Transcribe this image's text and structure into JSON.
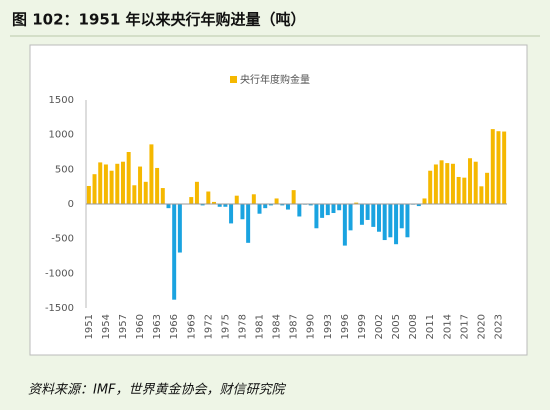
{
  "chart_data": {
    "type": "bar",
    "title": "图 102：1951 年以来央行年购进量（吨）",
    "source": "资料来源：IMF，世界黄金协会，财信研究院",
    "categories": [
      "1951",
      null,
      null,
      "1954",
      null,
      null,
      "1957",
      null,
      null,
      "1960",
      null,
      null,
      "1963",
      null,
      null,
      "1966",
      null,
      null,
      "1969",
      null,
      null,
      "1972",
      null,
      null,
      "1975",
      null,
      null,
      "1978",
      null,
      null,
      "1981",
      null,
      null,
      "1984",
      null,
      null,
      "1987",
      null,
      null,
      "1990",
      null,
      null,
      "1993",
      null,
      null,
      "1996",
      null,
      null,
      "1999",
      null,
      null,
      "2002",
      null,
      null,
      "2005",
      null,
      null,
      "2008",
      null,
      null,
      "2011",
      null,
      null,
      "2014",
      null,
      null,
      "2017",
      null,
      null,
      "2020",
      null,
      null,
      "2023",
      null
    ],
    "series": [
      {
        "name": "央行年度购金量",
        "color": "#f5b800",
        "values": [
          260,
          430,
          600,
          570,
          480,
          580,
          610,
          750,
          270,
          540,
          320,
          860,
          520,
          230,
          -60,
          -1380,
          -700,
          0,
          100,
          320,
          -20,
          180,
          30,
          -40,
          -40,
          -280,
          120,
          -220,
          -560,
          140,
          -140,
          -60,
          -20,
          80,
          -20,
          -80,
          200,
          -180,
          -10,
          -20,
          -350,
          -200,
          -160,
          -130,
          -90,
          -600,
          -380,
          20,
          -300,
          -230,
          -330,
          -400,
          -520,
          -480,
          -580,
          -350,
          -480,
          -10,
          -30,
          80,
          480,
          570,
          630,
          590,
          580,
          390,
          380,
          660,
          610,
          255,
          450,
          1080,
          1050,
          1045
        ]
      }
    ],
    "negative_color": "#1aa3e0",
    "ylim": [
      -1500,
      1500
    ],
    "yticks": [
      1500,
      1000,
      500,
      0,
      -500,
      -1000,
      -1500
    ],
    "legend": "top"
  }
}
